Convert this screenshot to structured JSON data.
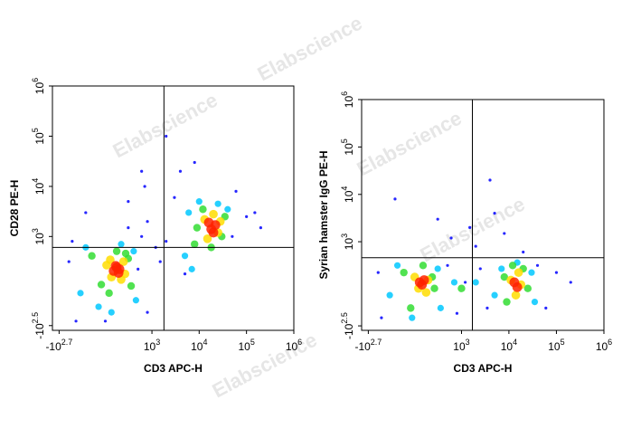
{
  "watermark": "Elabscience",
  "chart_data": [
    {
      "type": "scatter",
      "x_label": "CD3 APC-H",
      "y_label": "CD28 PE-H",
      "xlim": [
        -700,
        1000000
      ],
      "ylim": [
        -400,
        1000000
      ],
      "xticks": [
        {
          "value": -501,
          "label": "-10",
          "exponent": "2.7"
        },
        {
          "value": 1000,
          "label": "10",
          "exponent": "3"
        },
        {
          "value": 10000,
          "label": "10",
          "exponent": "4"
        },
        {
          "value": 100000,
          "label": "10",
          "exponent": "5"
        },
        {
          "value": 1000000,
          "label": "10",
          "exponent": "6"
        }
      ],
      "yticks": [
        {
          "value": -316,
          "label": "-10",
          "exponent": "2.5"
        },
        {
          "value": 1000,
          "label": "10",
          "exponent": "3"
        },
        {
          "value": 10000,
          "label": "10",
          "exponent": "4"
        },
        {
          "value": 100000,
          "label": "10",
          "exponent": "5"
        },
        {
          "value": 1000000,
          "label": "10",
          "exponent": "6"
        }
      ],
      "gates": {
        "x": 1800,
        "y": 600
      },
      "series": [
        {
          "color": "#0000ff",
          "x": [
            -300,
            -250,
            600,
            800,
            1200,
            -200,
            300,
            500,
            50,
            3000,
            60000,
            2000,
            100000,
            4000,
            1500,
            50000,
            8000,
            300,
            600,
            2000,
            800,
            150000,
            200000,
            -100,
            700,
            5000
          ],
          "values": [
            300,
            800,
            1000,
            -150,
            600,
            -250,
            1500,
            200,
            -250,
            6000,
            8000,
            800,
            2500,
            20000,
            300,
            1000,
            30000,
            5000,
            20000,
            100000,
            2000,
            3000,
            1500,
            3000,
            10000,
            150
          ]
        },
        {
          "color": "#00c8ff",
          "x": [
            -150,
            -100,
            400,
            450,
            200,
            0,
            100,
            6000,
            40000,
            5000,
            10000,
            25000,
            7000
          ],
          "values": [
            0,
            600,
            500,
            -50,
            700,
            -100,
            -150,
            3000,
            3500,
            400,
            5000,
            4500,
            200
          ]
        },
        {
          "color": "#33dd33",
          "x": [
            -50,
            20,
            300,
            350,
            150,
            80,
            260,
            9000,
            30000,
            12000,
            35000,
            8000,
            18000
          ],
          "values": [
            400,
            60,
            350,
            50,
            500,
            0,
            450,
            1500,
            1000,
            3500,
            2500,
            700,
            600
          ]
        },
        {
          "color": "#ffdd00",
          "x": [
            60,
            100,
            230,
            250,
            90,
            200,
            13000,
            25000,
            15000,
            28000,
            20000
          ],
          "values": [
            250,
            120,
            300,
            150,
            330,
            100,
            2200,
            1200,
            900,
            2000,
            2800
          ]
        },
        {
          "color": "#ff2200",
          "x": [
            120,
            150,
            180,
            140,
            170,
            18000,
            22000,
            20000,
            16000
          ],
          "values": [
            180,
            220,
            200,
            240,
            160,
            1400,
            1700,
            1200,
            1900
          ]
        }
      ]
    },
    {
      "type": "scatter",
      "x_label": "CD3 APC-H",
      "y_label": "Syrian hamster IgG PE-H",
      "xlim": [
        -700,
        1000000
      ],
      "ylim": [
        -400,
        1000000
      ],
      "xticks": [
        {
          "value": -501,
          "label": "-10",
          "exponent": "2.7"
        },
        {
          "value": 1000,
          "label": "10",
          "exponent": "3"
        },
        {
          "value": 10000,
          "label": "10",
          "exponent": "4"
        },
        {
          "value": 100000,
          "label": "10",
          "exponent": "5"
        },
        {
          "value": 1000000,
          "label": "10",
          "exponent": "6"
        }
      ],
      "yticks": [
        {
          "value": -316,
          "label": "-10",
          "exponent": "2.5"
        },
        {
          "value": 1000,
          "label": "10",
          "exponent": "3"
        },
        {
          "value": 10000,
          "label": "10",
          "exponent": "4"
        },
        {
          "value": 100000,
          "label": "10",
          "exponent": "5"
        },
        {
          "value": 1000000,
          "label": "10",
          "exponent": "6"
        }
      ],
      "gates": {
        "x": 1700,
        "y": 450
      },
      "series": [
        {
          "color": "#0000ff",
          "x": [
            -300,
            -250,
            500,
            800,
            1200,
            2500,
            3500,
            5000,
            40000,
            60000,
            100000,
            200000,
            300,
            1500,
            4000,
            8000,
            -100,
            20000,
            2000,
            600
          ],
          "values": [
            200,
            -200,
            300,
            -150,
            100,
            250,
            -100,
            4000,
            300,
            -100,
            200,
            100,
            3000,
            2000,
            20000,
            1500,
            8000,
            600,
            800,
            1200
          ]
        },
        {
          "color": "#00c8ff",
          "x": [
            -150,
            -80,
            300,
            350,
            30,
            700,
            5000,
            7000,
            30000,
            35000,
            15000,
            2000
          ],
          "values": [
            0,
            300,
            250,
            -100,
            -200,
            100,
            0,
            250,
            200,
            -50,
            350,
            100
          ]
        },
        {
          "color": "#33dd33",
          "x": [
            -30,
            20,
            220,
            250,
            120,
            8000,
            25000,
            20000,
            9000,
            1000,
            12000
          ],
          "values": [
            200,
            -100,
            150,
            50,
            300,
            150,
            50,
            250,
            -50,
            50,
            300
          ]
        },
        {
          "color": "#ffdd00",
          "x": [
            50,
            80,
            170,
            150,
            11000,
            18000,
            14000,
            16000
          ],
          "values": [
            150,
            50,
            120,
            20,
            120,
            80,
            0,
            200
          ]
        },
        {
          "color": "#ff2200",
          "x": [
            90,
            110,
            130,
            13000,
            15000
          ],
          "values": [
            100,
            80,
            120,
            100,
            60
          ]
        }
      ]
    }
  ]
}
